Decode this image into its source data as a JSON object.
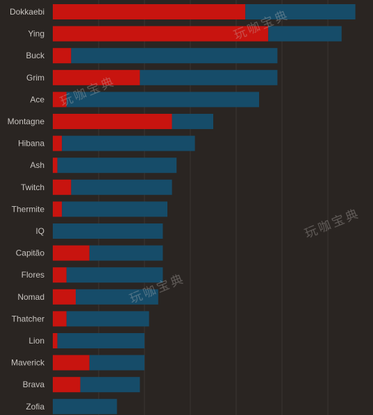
{
  "chart_data": {
    "type": "bar",
    "orientation": "horizontal",
    "stacked": true,
    "categories": [
      "Dokkaebi",
      "Ying",
      "Buck",
      "Grim",
      "Ace",
      "Montagne",
      "Hibana",
      "Ash",
      "Twitch",
      "Thermite",
      "IQ",
      "Capitão",
      "Flores",
      "Nomad",
      "Thatcher",
      "Lion",
      "Maverick",
      "Brava",
      "Zofia"
    ],
    "series": [
      {
        "color": "#c8140f",
        "values": [
          42,
          47,
          4,
          19,
          3,
          26,
          2,
          1,
          4,
          2,
          0,
          8,
          3,
          5,
          3,
          1,
          8,
          6,
          0
        ]
      },
      {
        "color": "#164c69",
        "values": [
          24,
          16,
          45,
          30,
          42,
          9,
          29,
          26,
          22,
          23,
          24,
          16,
          21,
          18,
          18,
          19,
          12,
          13,
          14
        ]
      }
    ],
    "xlim": [
      0,
      68
    ],
    "grid": true,
    "legend": "none"
  },
  "style": {
    "background": "#2a2522",
    "grid_color": "#3a3532",
    "label_color": "#c8c4c0"
  },
  "watermark": {
    "text": "玩咖宝典"
  }
}
